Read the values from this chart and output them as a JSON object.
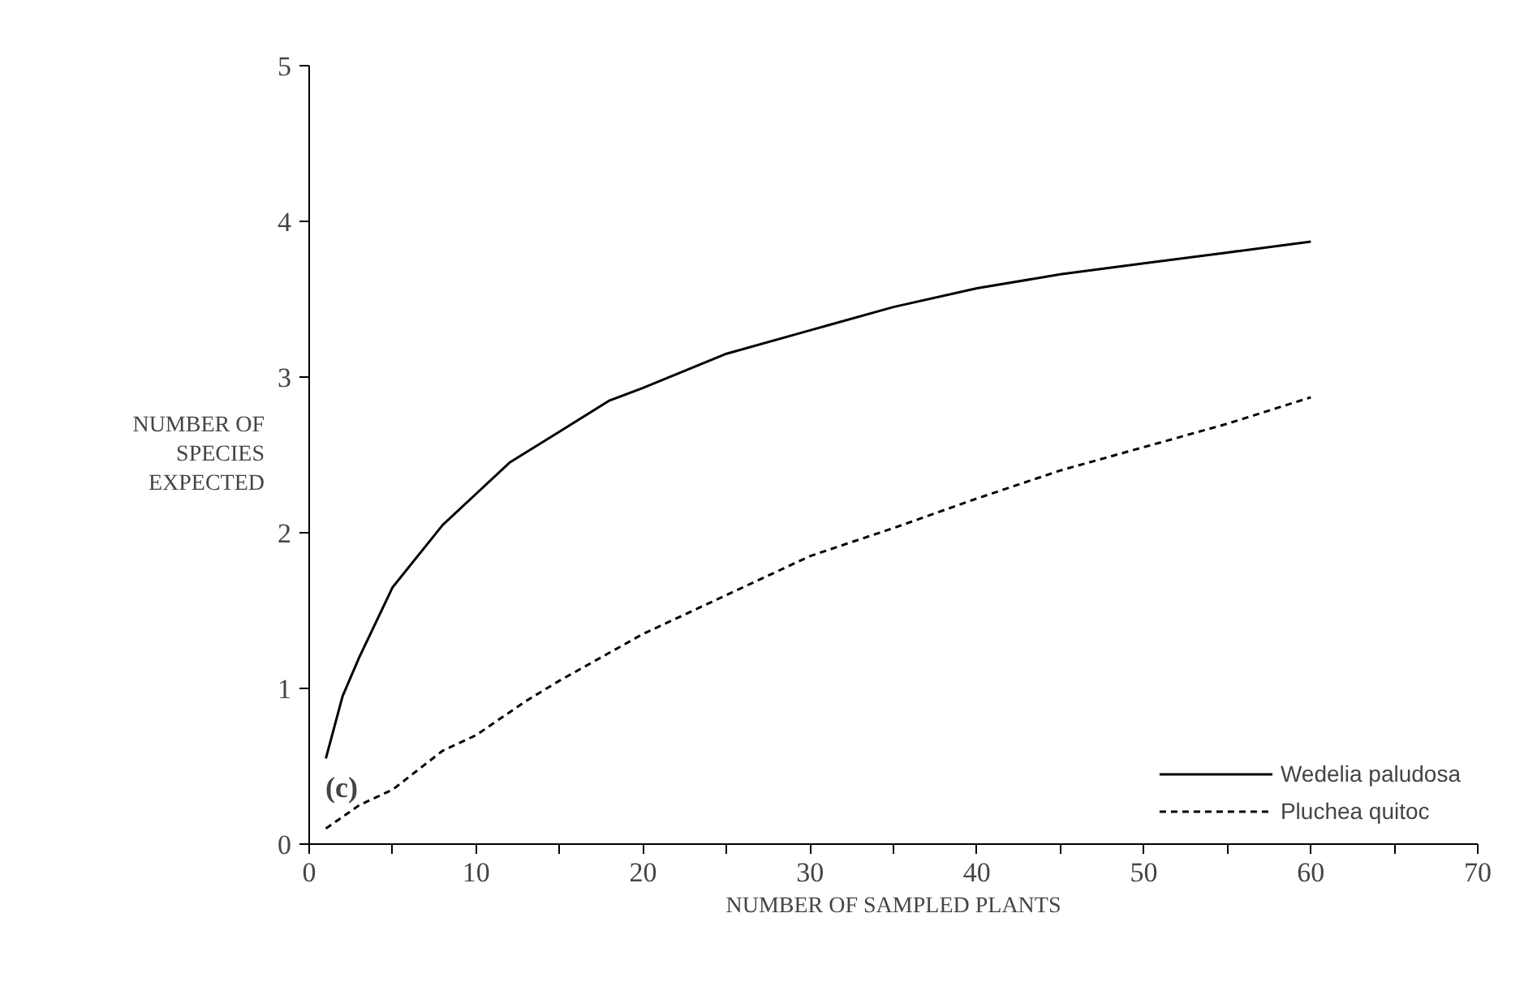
{
  "chart_data": {
    "type": "line",
    "xlabel": "NUMBER OF SAMPLED PLANTS",
    "ylabel": "NUMBER OF\nSPECIES\nEXPECTED",
    "annotations": [
      "(c)"
    ],
    "xlim": [
      0,
      70
    ],
    "ylim": [
      0,
      5
    ],
    "xticks": [
      0,
      {
        "value": 5,
        "label": null
      },
      10,
      {
        "value": 15,
        "label": null
      },
      20,
      {
        "value": 25,
        "label": null
      },
      30,
      {
        "value": 35,
        "label": null
      },
      40,
      {
        "value": 45,
        "label": null
      },
      50,
      {
        "value": 55,
        "label": null
      },
      60,
      {
        "value": 65,
        "label": null
      },
      70
    ],
    "yticks": [
      0,
      1,
      2,
      3,
      4,
      5
    ],
    "grid": false,
    "legend": "bottom right",
    "marker": "none",
    "series": [
      {
        "name": "Wedelia paludosa",
        "color": "#000000",
        "line_style": "solid",
        "x": [
          1,
          2,
          3,
          5,
          8,
          10,
          12,
          15,
          18,
          20,
          25,
          30,
          35,
          40,
          45,
          50,
          55,
          60
        ],
        "values": [
          0.55,
          0.95,
          1.2,
          1.65,
          2.05,
          2.25,
          2.45,
          2.65,
          2.85,
          2.93,
          3.15,
          3.3,
          3.45,
          3.57,
          3.66,
          3.73,
          3.8,
          3.87
        ]
      },
      {
        "name": "Pluchea quitoc",
        "color": "#000000",
        "line_style": "dashed",
        "x": [
          1,
          3,
          5,
          8,
          10,
          13,
          15,
          20,
          25,
          30,
          35,
          40,
          45,
          50,
          55,
          60
        ],
        "values": [
          0.1,
          0.25,
          0.35,
          0.6,
          0.7,
          0.92,
          1.05,
          1.35,
          1.6,
          1.85,
          2.03,
          2.22,
          2.4,
          2.55,
          2.7,
          2.87
        ]
      }
    ]
  }
}
